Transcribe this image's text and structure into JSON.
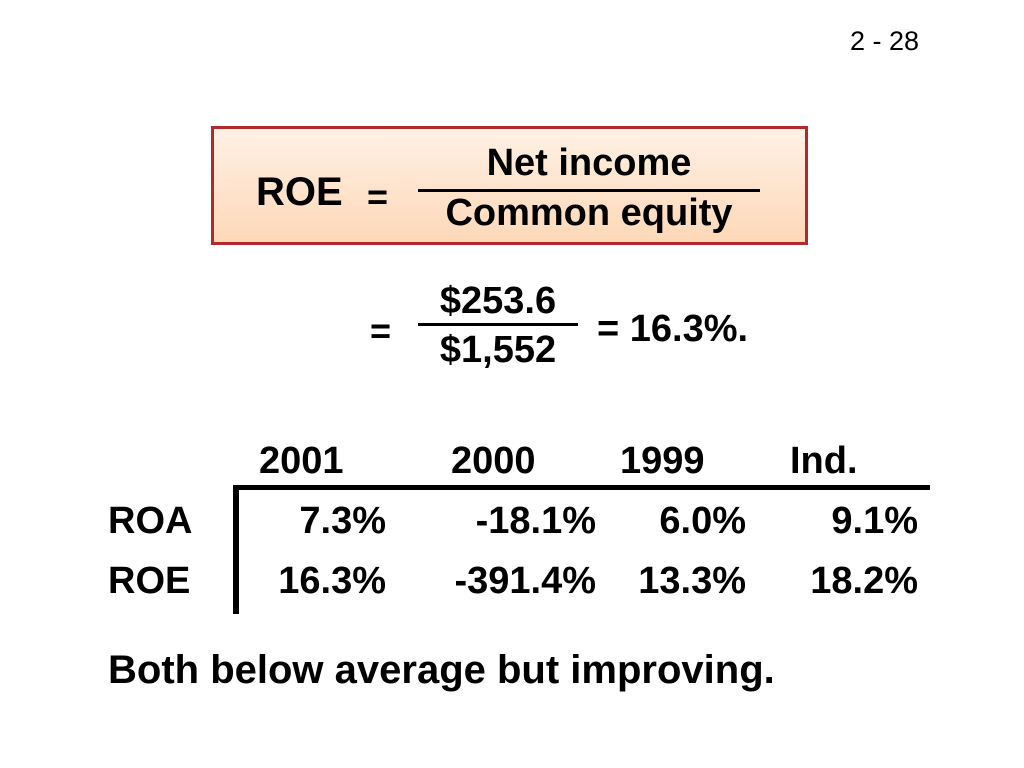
{
  "slide_number": "2 - 28",
  "formula": {
    "lhs": "ROE",
    "equals": "=",
    "numerator": "Net income",
    "denominator": "Common equity"
  },
  "calculation": {
    "equals": "=",
    "numerator": "$253.6",
    "denominator": "$1,552",
    "result": "= 16.3%."
  },
  "table": {
    "columns": [
      "2001",
      "2000",
      "1999",
      "Ind."
    ],
    "rows": [
      {
        "label": "ROA",
        "values": [
          "7.3%",
          "-18.1%",
          "6.0%",
          "9.1%"
        ]
      },
      {
        "label": "ROE",
        "values": [
          "16.3%",
          "-391.4%",
          "13.3%",
          "18.2%"
        ]
      }
    ]
  },
  "conclusion": "Both below average but improving."
}
